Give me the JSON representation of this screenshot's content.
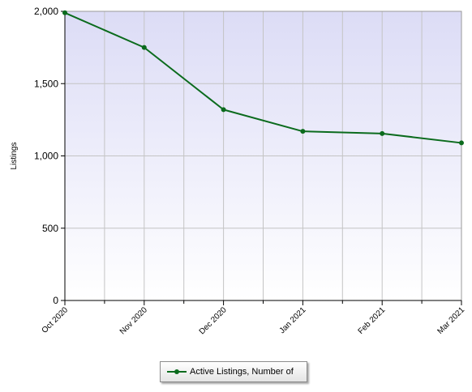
{
  "chart_data": {
    "type": "line",
    "title": "",
    "xlabel": "",
    "ylabel": "Listings",
    "ylim": [
      0,
      2000
    ],
    "yticks": [
      0,
      500,
      1000,
      1500,
      2000
    ],
    "ytick_labels": [
      "0",
      "500",
      "1,000",
      "1,500",
      "2,000"
    ],
    "categories": [
      "Oct 2020",
      "Nov 2020",
      "Dec 2020",
      "Jan 2021",
      "Feb 2021",
      "Mar 2021"
    ],
    "x_values": [
      "2020-10",
      "2020-11",
      "2020-12",
      "2021-01",
      "2021-02",
      "2021-03"
    ],
    "grid": true,
    "legend_position": "bottom",
    "series": [
      {
        "name": "Active Listings, Number of",
        "color": "#0b6b1d",
        "values": [
          1990,
          1750,
          1320,
          1170,
          1155,
          1090
        ]
      }
    ]
  }
}
